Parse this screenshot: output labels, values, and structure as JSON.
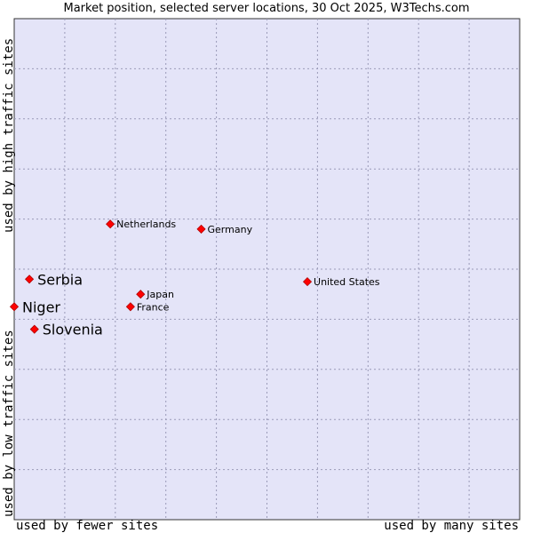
{
  "chart_data": {
    "type": "scatter",
    "title": "Market position, selected server locations, 30 Oct 2025, W3Techs.com",
    "xlabel_low": "used by fewer sites",
    "xlabel_high": "used by many sites",
    "ylabel_high": "used by high traffic sites",
    "ylabel_low": "used by low traffic sites",
    "xlim": [
      0,
      10
    ],
    "ylim": [
      0,
      10
    ],
    "grid": true,
    "points": [
      {
        "label": "Netherlands",
        "x": 1.9,
        "y": 5.9,
        "highlight": false
      },
      {
        "label": "Germany",
        "x": 3.7,
        "y": 5.8,
        "highlight": false
      },
      {
        "label": "Serbia",
        "x": 0.3,
        "y": 4.8,
        "highlight": true
      },
      {
        "label": "United States",
        "x": 5.8,
        "y": 4.75,
        "highlight": false
      },
      {
        "label": "Japan",
        "x": 2.5,
        "y": 4.5,
        "highlight": false
      },
      {
        "label": "France",
        "x": 2.3,
        "y": 4.25,
        "highlight": false
      },
      {
        "label": "Niger",
        "x": 0.0,
        "y": 4.25,
        "highlight": true
      },
      {
        "label": "Slovenia",
        "x": 0.4,
        "y": 3.8,
        "highlight": true
      }
    ]
  },
  "colors": {
    "plot_background": "#e4e4f8",
    "grid": "#9a9ab8",
    "marker": "#ff0000",
    "marker_outline": "#b00000"
  }
}
